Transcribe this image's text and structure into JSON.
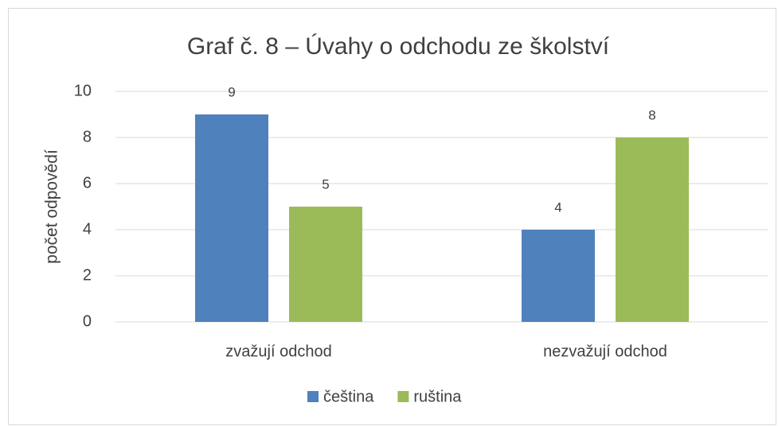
{
  "chart_data": {
    "type": "bar",
    "title": "Graf č. 8 – Úvahy o odchodu ze školství",
    "ylabel": "počet odpovědí",
    "categories": [
      "zvažují odchod",
      "nezvažují odchod"
    ],
    "series": [
      {
        "name": "čeština",
        "color": "#4f81bd",
        "values": [
          9,
          4
        ]
      },
      {
        "name": "ruština",
        "color": "#9bbb59",
        "values": [
          5,
          8
        ]
      }
    ],
    "ylim": [
      0,
      10
    ],
    "yticks": [
      0,
      2,
      4,
      6,
      8,
      10
    ],
    "grid": true,
    "legend": "bottom"
  }
}
